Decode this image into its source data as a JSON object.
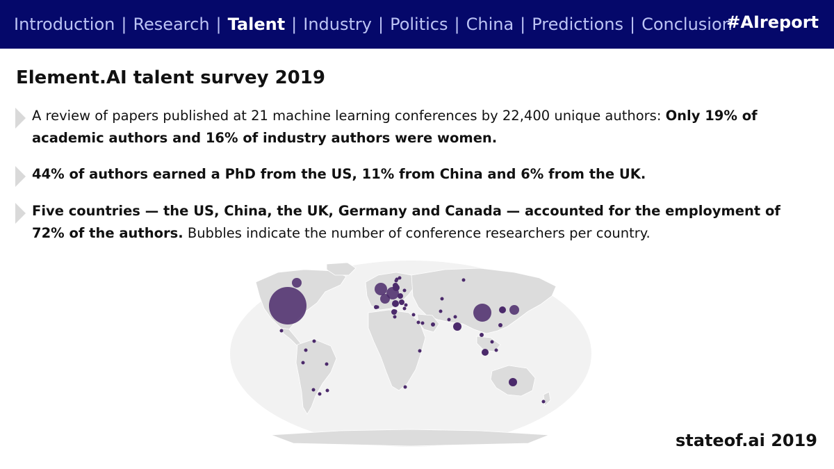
{
  "nav": {
    "items": [
      {
        "label": "Introduction",
        "active": false
      },
      {
        "label": "Research",
        "active": false
      },
      {
        "label": "Talent",
        "active": true
      },
      {
        "label": "Industry",
        "active": false
      },
      {
        "label": "Politics",
        "active": false
      },
      {
        "label": "China",
        "active": false
      },
      {
        "label": "Predictions",
        "active": false
      },
      {
        "label": "Conclusion",
        "active": false
      }
    ],
    "separator": "|",
    "hashtag": "#AIreport"
  },
  "title": "Element.AI talent survey 2019",
  "bullets": [
    {
      "plain_1": "A review of papers published at 21 machine learning conferences by 22,400 unique authors: ",
      "bold_1": "Only 19% of academic authors and 16% of industry authors were women."
    },
    {
      "bold_1": "44% of authors earned a PhD from the US, 11% from China and 6% from the UK."
    },
    {
      "bold_1": "Five countries — the US, China, the UK, Germany and Canada — accounted for the employment of 72% of the authors.",
      "plain_2": " Bubbles indicate the number of conference researchers per country."
    }
  ],
  "footer": "stateof.ai 2019",
  "colors": {
    "nav_background": "#05086a",
    "nav_text": "#bcc3f4",
    "nav_active": "#ffffff",
    "bubble": "#4b2a6b",
    "land": "#dcdcdc",
    "ocean": "#f2f2f2"
  }
}
